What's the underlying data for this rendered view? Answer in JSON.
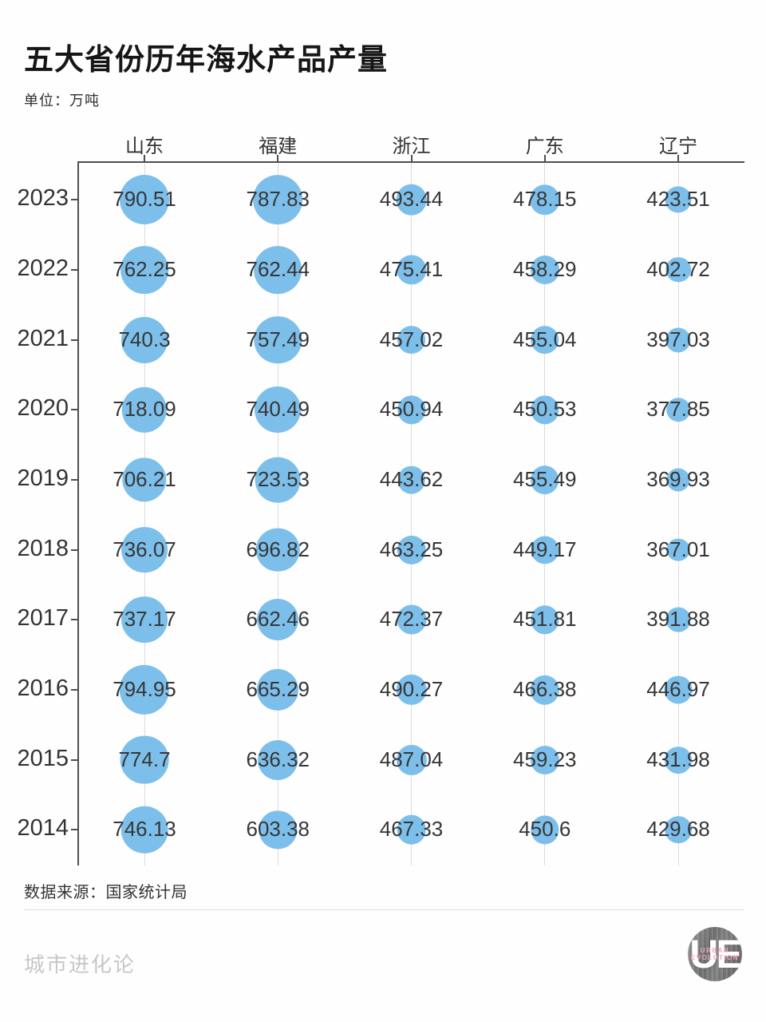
{
  "chart_data": {
    "type": "scatter",
    "variant": "bubble-matrix",
    "title": "五大省份历年海水产品产量",
    "unit_label": "单位：万吨",
    "columns": [
      "山东",
      "福建",
      "浙江",
      "广东",
      "辽宁"
    ],
    "years": [
      "2023",
      "2022",
      "2021",
      "2020",
      "2019",
      "2018",
      "2017",
      "2016",
      "2015",
      "2014"
    ],
    "series": [
      {
        "name": "山东",
        "values": [
          790.51,
          762.25,
          740.3,
          718.09,
          706.21,
          736.07,
          737.17,
          794.95,
          774.7,
          746.13
        ]
      },
      {
        "name": "福建",
        "values": [
          787.83,
          762.44,
          757.49,
          740.49,
          723.53,
          696.82,
          662.46,
          665.29,
          636.32,
          603.38
        ]
      },
      {
        "name": "浙江",
        "values": [
          493.44,
          475.41,
          457.02,
          450.94,
          443.62,
          463.25,
          472.37,
          490.27,
          487.04,
          467.33
        ]
      },
      {
        "name": "广东",
        "values": [
          478.15,
          458.29,
          455.04,
          450.53,
          455.49,
          449.17,
          451.81,
          466.38,
          459.23,
          450.6
        ]
      },
      {
        "name": "辽宁",
        "values": [
          423.51,
          402.72,
          397.03,
          377.85,
          369.93,
          367.01,
          391.88,
          446.97,
          431.98,
          429.68
        ]
      }
    ],
    "bubble_color": "#7DBFEB",
    "axis_color": "#4f4f4f",
    "gridline_color": "#dcdcdc",
    "grid": true,
    "legend_position": "top",
    "source": "数据来源：国家统计局"
  },
  "footer": {
    "watermark": "城市进化论",
    "logo_monogram": "UE",
    "logo_line1": "URBAN",
    "logo_line2": "EVOLUTION"
  }
}
